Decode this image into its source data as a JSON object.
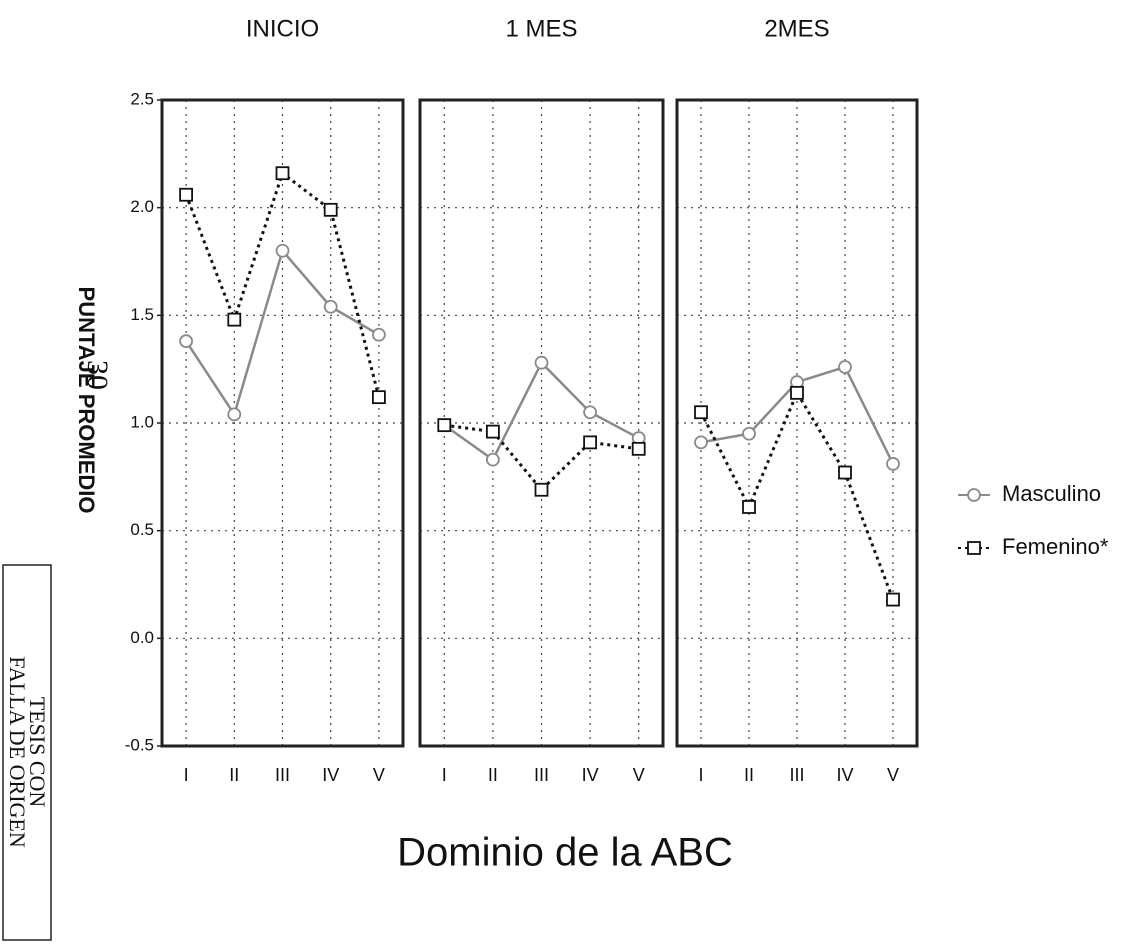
{
  "chart_data": [
    {
      "type": "line",
      "title": "INICIO",
      "categories": [
        "I",
        "II",
        "III",
        "IV",
        "V"
      ],
      "series": [
        {
          "name": "Masculino",
          "color": "#8a8a8a",
          "line_style": "solid",
          "marker": "circle",
          "values": [
            1.38,
            1.04,
            1.8,
            1.54,
            1.41
          ]
        },
        {
          "name": "Femenino*",
          "color": "#111111",
          "line_style": "dotted",
          "marker": "square",
          "values": [
            2.06,
            1.48,
            2.16,
            1.99,
            1.12
          ]
        }
      ],
      "ylim": [
        -0.5,
        2.5
      ],
      "yticks": [
        -0.5,
        {
          "value": 0,
          "label": "0.0"
        },
        0.5,
        {
          "value": 1,
          "label": "1.0"
        },
        1.5,
        {
          "value": 2,
          "label": "2.0"
        },
        2.5
      ],
      "grid": true
    },
    {
      "type": "line",
      "title": "1 MES",
      "categories": [
        "I",
        "II",
        "III",
        "IV",
        "V"
      ],
      "series": [
        {
          "color": "#8a8a8a",
          "line_style": "solid",
          "marker": "circle",
          "values": [
            0.99,
            0.83,
            1.28,
            1.05,
            0.93
          ]
        },
        {
          "color": "#111111",
          "line_style": "dotted",
          "marker": "square",
          "values": [
            0.99,
            0.96,
            0.69,
            0.91,
            0.88
          ]
        }
      ],
      "ylim": [
        -0.5,
        2.5
      ],
      "yticks": [
        -0.5,
        0,
        0.5,
        1,
        1.5,
        2,
        2.5
      ],
      "grid": true
    },
    {
      "type": "line",
      "title": "2MES",
      "categories": [
        "I",
        "II",
        "III",
        "IV",
        "V"
      ],
      "series": [
        {
          "color": "#8a8a8a",
          "line_style": "solid",
          "marker": "circle",
          "values": [
            0.91,
            0.95,
            1.19,
            1.26,
            0.81
          ]
        },
        {
          "color": "#111111",
          "line_style": "dotted",
          "marker": "square",
          "values": [
            1.05,
            0.61,
            1.14,
            0.77,
            0.18
          ]
        }
      ],
      "ylim": [
        -0.5,
        2.5
      ],
      "yticks": [
        -0.5,
        0,
        0.5,
        1,
        1.5,
        2,
        2.5
      ],
      "grid": true
    }
  ],
  "y_label": "PUNTAJE PROMEDIO",
  "x_label": "Dominio de la ABC",
  "legend": "right",
  "annotations": [
    "30",
    "TESIS CON",
    "FALLA DE ORIGEN"
  ]
}
